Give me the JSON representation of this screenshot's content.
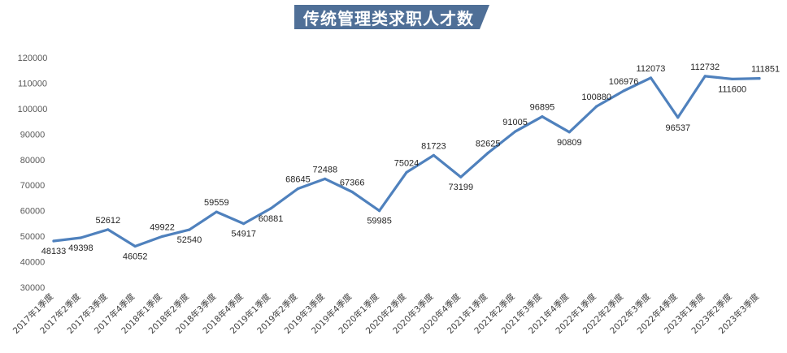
{
  "chart_data": {
    "type": "line",
    "title": "传统管理类求职人才数",
    "categories": [
      "2017年1季度",
      "2017年2季度",
      "2017年3季度",
      "2017年4季度",
      "2018年1季度",
      "2018年2季度",
      "2018年3季度",
      "2018年4季度",
      "2019年1季度",
      "2019年2季度",
      "2019年3季度",
      "2019年4季度",
      "2020年1季度",
      "2020年2季度",
      "2020年3季度",
      "2020年4季度",
      "2021年1季度",
      "2021年2季度",
      "2021年3季度",
      "2021年4季度",
      "2022年1季度",
      "2022年2季度",
      "2022年3季度",
      "2022年4季度",
      "2023年1季度",
      "2023年2季度",
      "2023年3季度"
    ],
    "series": [
      {
        "values": [
          48133,
          49398,
          52612,
          46052,
          49922,
          52540,
          59559,
          54917,
          60881,
          68645,
          72488,
          67366,
          59985,
          75024,
          81723,
          73199,
          82625,
          91005,
          96895,
          90809,
          100880,
          106976,
          112073,
          96537,
          112732,
          111600,
          111851
        ]
      }
    ],
    "ylim": [
      30000,
      120000
    ],
    "yticks": [
      "30000",
      "40000",
      "50000",
      "60000",
      "70000",
      "80000",
      "90000",
      "100000",
      "110000",
      "120000"
    ],
    "grid": false,
    "legend": "none",
    "line_color": "#4f81bd",
    "title_bg_color": "#4f6f97"
  }
}
